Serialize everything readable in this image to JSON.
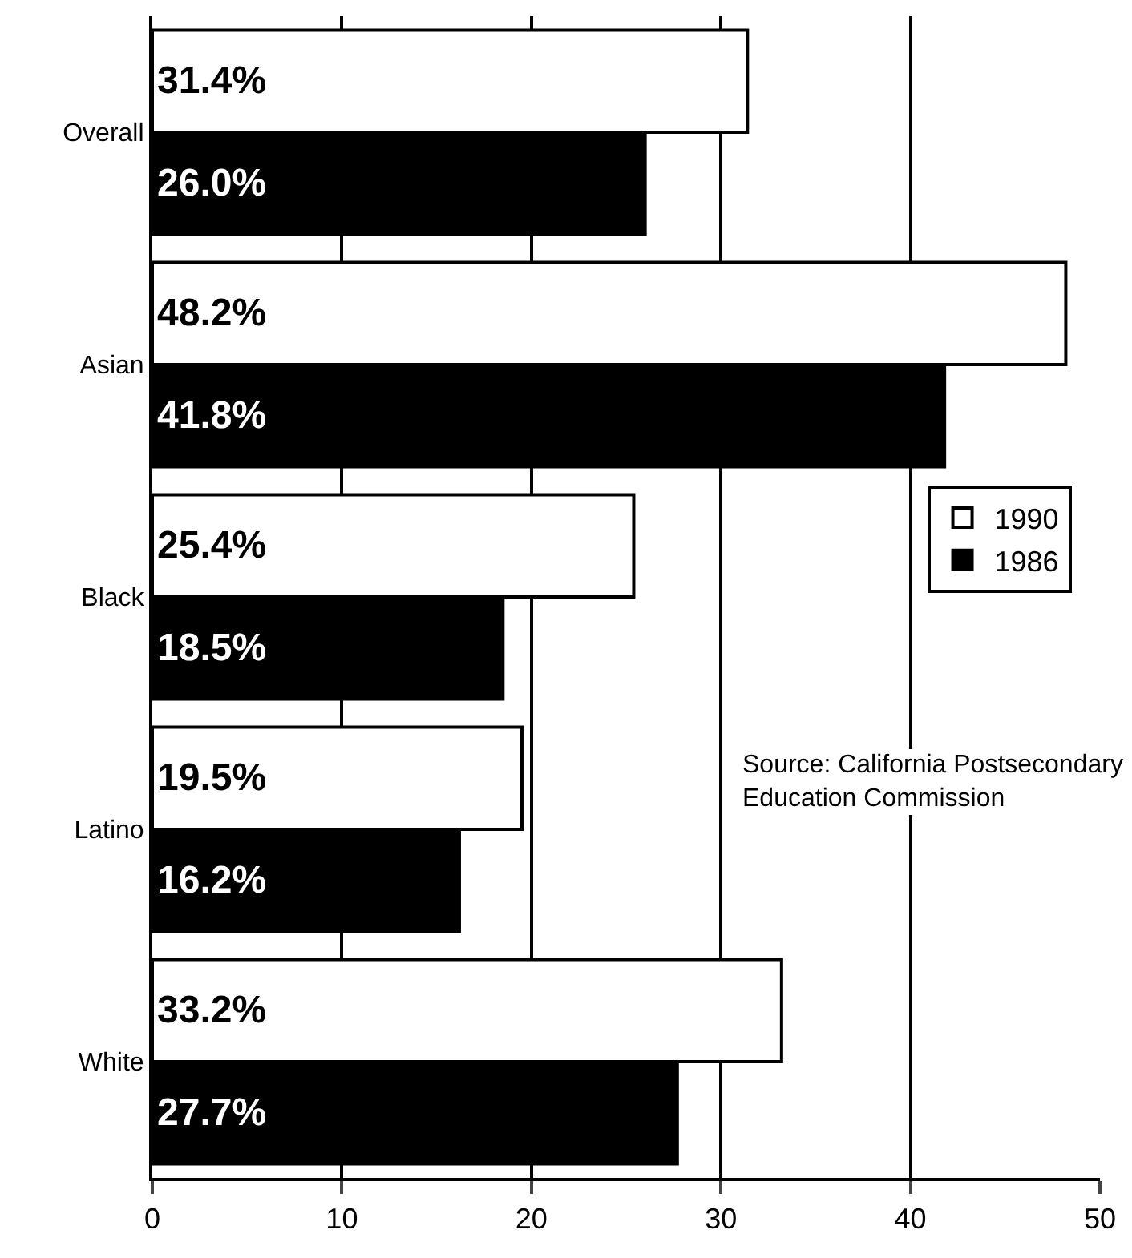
{
  "chart_data": {
    "type": "bar",
    "orientation": "horizontal",
    "categories": [
      "Overall",
      "Asian",
      "Black",
      "Latino",
      "White"
    ],
    "series": [
      {
        "name": "1990",
        "color": "#ffffff",
        "values": [
          31.4,
          48.2,
          25.4,
          19.5,
          33.2
        ],
        "value_labels": [
          "31.4%",
          "48.2%",
          "25.4%",
          "19.5%",
          "33.2%"
        ]
      },
      {
        "name": "1986",
        "color": "#000000",
        "values": [
          26.0,
          41.8,
          18.5,
          16.2,
          27.7
        ],
        "value_labels": [
          "26.0%",
          "41.8%",
          "18.5%",
          "16.2%",
          "27.7%"
        ]
      }
    ],
    "xlim": [
      0,
      50
    ],
    "xticks": [
      0,
      10,
      20,
      30,
      40,
      50
    ],
    "grid": "x",
    "legend": "right",
    "annotations": [
      "Source: California Postsecondary\nEducation Commission"
    ]
  }
}
